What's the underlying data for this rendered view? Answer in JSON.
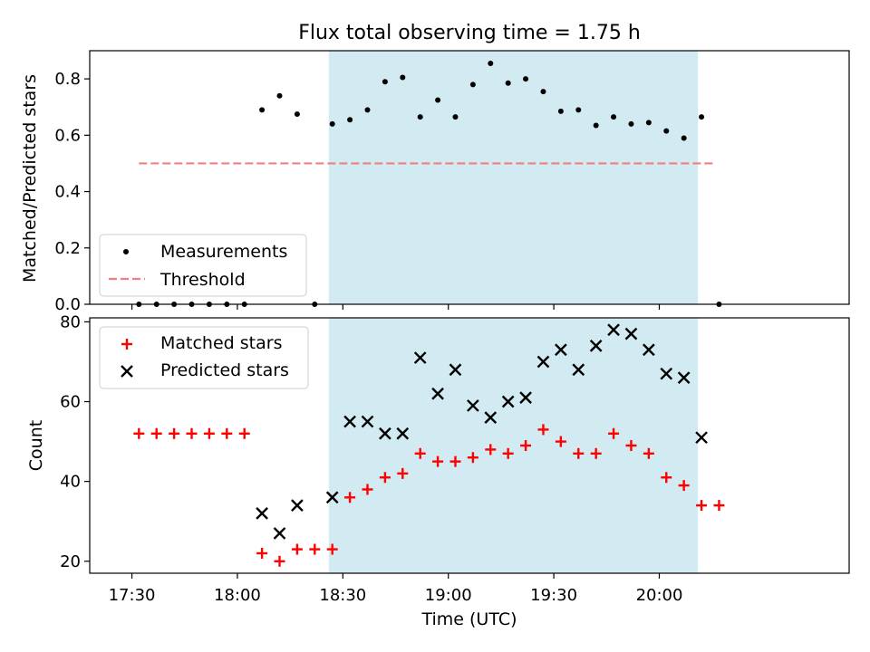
{
  "chart_data": [
    {
      "type": "scatter",
      "title": "Flux total observing time = 1.75 h",
      "ylabel": "Matched/Predicted stars",
      "xlabel": "",
      "ylim": [
        0,
        0.9
      ],
      "xlim": [
        "17:18",
        "20:54"
      ],
      "y_ticks": [
        "0.0",
        "0.2",
        "0.4",
        "0.6",
        "0.8"
      ],
      "x_ticks_labels_visible": false,
      "highlight_span": {
        "start": "18:26",
        "end": "20:11",
        "color": "#add8e6"
      },
      "legend": {
        "position": "lower-left",
        "entries": [
          "Measurements",
          "Threshold"
        ]
      },
      "series": [
        {
          "name": "Measurements",
          "marker": "dot",
          "color": "#000000",
          "x": [
            "17:32",
            "17:37",
            "17:42",
            "17:47",
            "17:52",
            "17:57",
            "18:02",
            "18:07",
            "18:12",
            "18:17",
            "18:22",
            "18:27",
            "18:32",
            "18:37",
            "18:42",
            "18:47",
            "18:52",
            "18:57",
            "19:02",
            "19:07",
            "19:12",
            "19:17",
            "19:22",
            "19:27",
            "19:32",
            "19:37",
            "19:42",
            "19:47",
            "19:52",
            "19:57",
            "20:02",
            "20:07",
            "20:12",
            "20:17"
          ],
          "y": [
            0,
            0,
            0,
            0,
            0,
            0,
            0,
            0.69,
            0.74,
            0.675,
            0,
            0.64,
            0.655,
            0.69,
            0.79,
            0.805,
            0.665,
            0.725,
            0.665,
            0.78,
            0.855,
            0.785,
            0.8,
            0.755,
            0.685,
            0.69,
            0.635,
            0.665,
            0.64,
            0.645,
            0.615,
            0.59,
            0.665,
            0
          ]
        },
        {
          "name": "Threshold",
          "marker": "dashed-line",
          "color": "#f08080",
          "x": [
            "17:32",
            "20:16"
          ],
          "y": [
            0.5,
            0.5
          ]
        }
      ]
    },
    {
      "type": "scatter",
      "title": "",
      "ylabel": "Count",
      "xlabel": "Time (UTC)",
      "ylim": [
        17,
        81
      ],
      "xlim": [
        "17:18",
        "20:54"
      ],
      "y_ticks": [
        "20",
        "40",
        "60",
        "80"
      ],
      "x_ticks": [
        "17:30",
        "18:00",
        "18:30",
        "19:00",
        "19:30",
        "20:00"
      ],
      "highlight_span": {
        "start": "18:26",
        "end": "20:11",
        "color": "#add8e6"
      },
      "legend": {
        "position": "upper-left",
        "entries": [
          "Matched stars",
          "Predicted stars"
        ]
      },
      "series": [
        {
          "name": "Matched stars",
          "marker": "plus",
          "color": "#ff0000",
          "x": [
            "17:32",
            "17:37",
            "17:42",
            "17:47",
            "17:52",
            "17:57",
            "18:02",
            "18:07",
            "18:12",
            "18:17",
            "18:22",
            "18:27",
            "18:32",
            "18:37",
            "18:42",
            "18:47",
            "18:52",
            "18:57",
            "19:02",
            "19:07",
            "19:12",
            "19:17",
            "19:22",
            "19:27",
            "19:32",
            "19:37",
            "19:42",
            "19:47",
            "19:52",
            "19:57",
            "20:02",
            "20:07",
            "20:12",
            "20:17"
          ],
          "y": [
            52,
            52,
            52,
            52,
            52,
            52,
            52,
            22,
            20,
            23,
            23,
            23,
            36,
            38,
            41,
            42,
            47,
            45,
            45,
            46,
            48,
            47,
            49,
            53,
            50,
            47,
            47,
            52,
            49,
            47,
            41,
            39,
            34,
            34
          ]
        },
        {
          "name": "Predicted stars",
          "marker": "x",
          "color": "#000000",
          "x": [
            "18:07",
            "18:12",
            "18:17",
            "18:27",
            "18:32",
            "18:37",
            "18:42",
            "18:47",
            "18:52",
            "18:57",
            "19:02",
            "19:07",
            "19:12",
            "19:17",
            "19:22",
            "19:27",
            "19:32",
            "19:37",
            "19:42",
            "19:47",
            "19:52",
            "19:57",
            "20:02",
            "20:07",
            "20:12"
          ],
          "y": [
            32,
            27,
            34,
            36,
            55,
            55,
            52,
            52,
            71,
            62,
            68,
            59,
            56,
            60,
            61,
            70,
            73,
            68,
            74,
            78,
            77,
            73,
            67,
            66,
            51
          ]
        }
      ]
    }
  ]
}
